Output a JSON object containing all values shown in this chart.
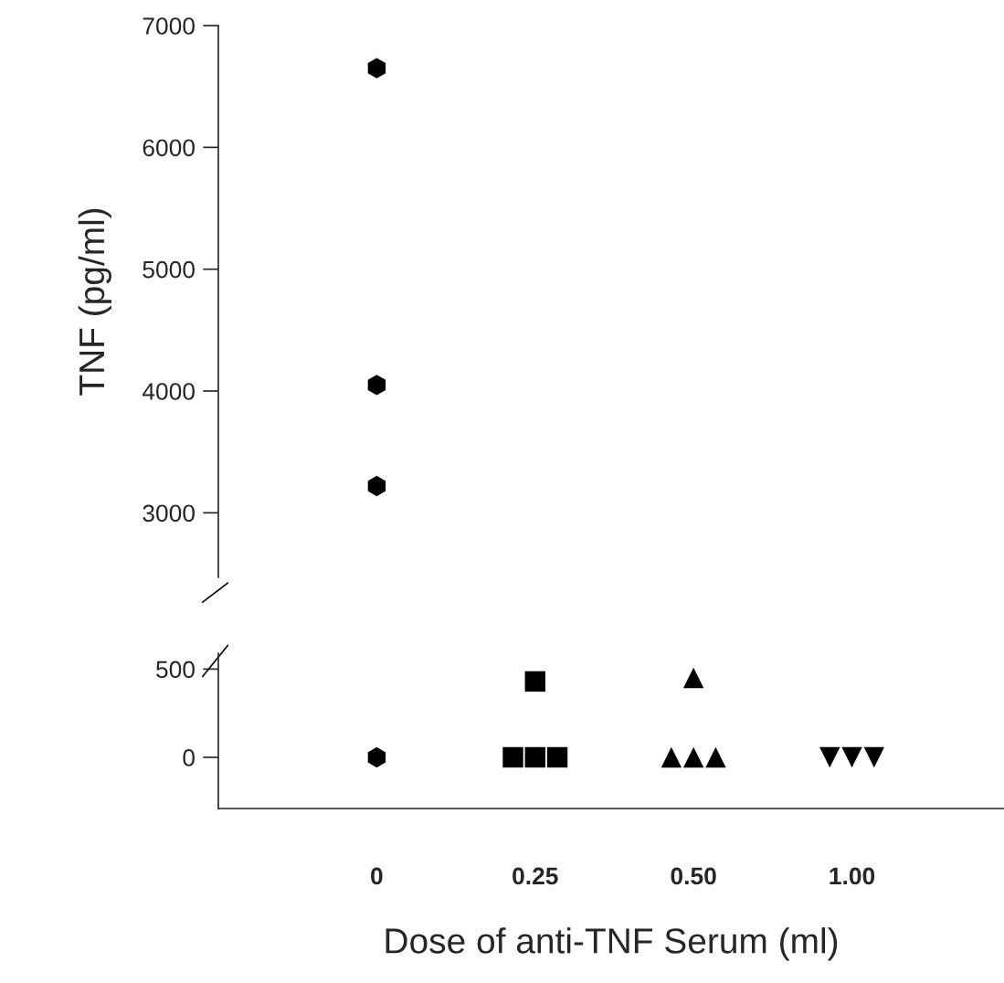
{
  "chart_data": [
    {
      "type": "scatter",
      "ylabel": "TNF (pg/ml)",
      "categories": [
        "0",
        "0.25",
        "0.50",
        "1.00"
      ],
      "ylim": [
        2470,
        7000
      ],
      "yticks": [
        3000,
        4000,
        5000,
        6000,
        7000
      ],
      "tick_labels": "y",
      "grid": false,
      "legend": false,
      "series": [
        {
          "color": "#000000",
          "marker": "circle",
          "x": [
            "0",
            "0",
            "0"
          ],
          "values": [
            6650,
            4050,
            3220
          ]
        }
      ]
    },
    {
      "type": "scatter",
      "xlabel": "Dose of anti-TNF Serum (ml)",
      "categories": [
        "0",
        "0.25",
        "0.50",
        "1.00"
      ],
      "ylim": [
        -290,
        590
      ],
      "yticks": [
        0,
        500
      ],
      "grid": false,
      "legend": false,
      "series": [
        {
          "color": "#000000",
          "marker": "circle",
          "x": [
            "0"
          ],
          "values": [
            0
          ]
        },
        {
          "color": "#000000",
          "marker": "square",
          "x": [
            "0.25",
            "0.25",
            "0.25",
            "0.25"
          ],
          "values": [
            430,
            0,
            0,
            0
          ]
        },
        {
          "color": "#000000",
          "marker": "triangle",
          "x": [
            "0.50",
            "0.50",
            "0.50",
            "0.50"
          ],
          "values": [
            450,
            0,
            0,
            0
          ]
        },
        {
          "color": "#000000",
          "marker": "triangle_down",
          "x": [
            "1.00",
            "1.00",
            "1.00"
          ],
          "values": [
            0,
            0,
            0
          ]
        }
      ]
    }
  ]
}
